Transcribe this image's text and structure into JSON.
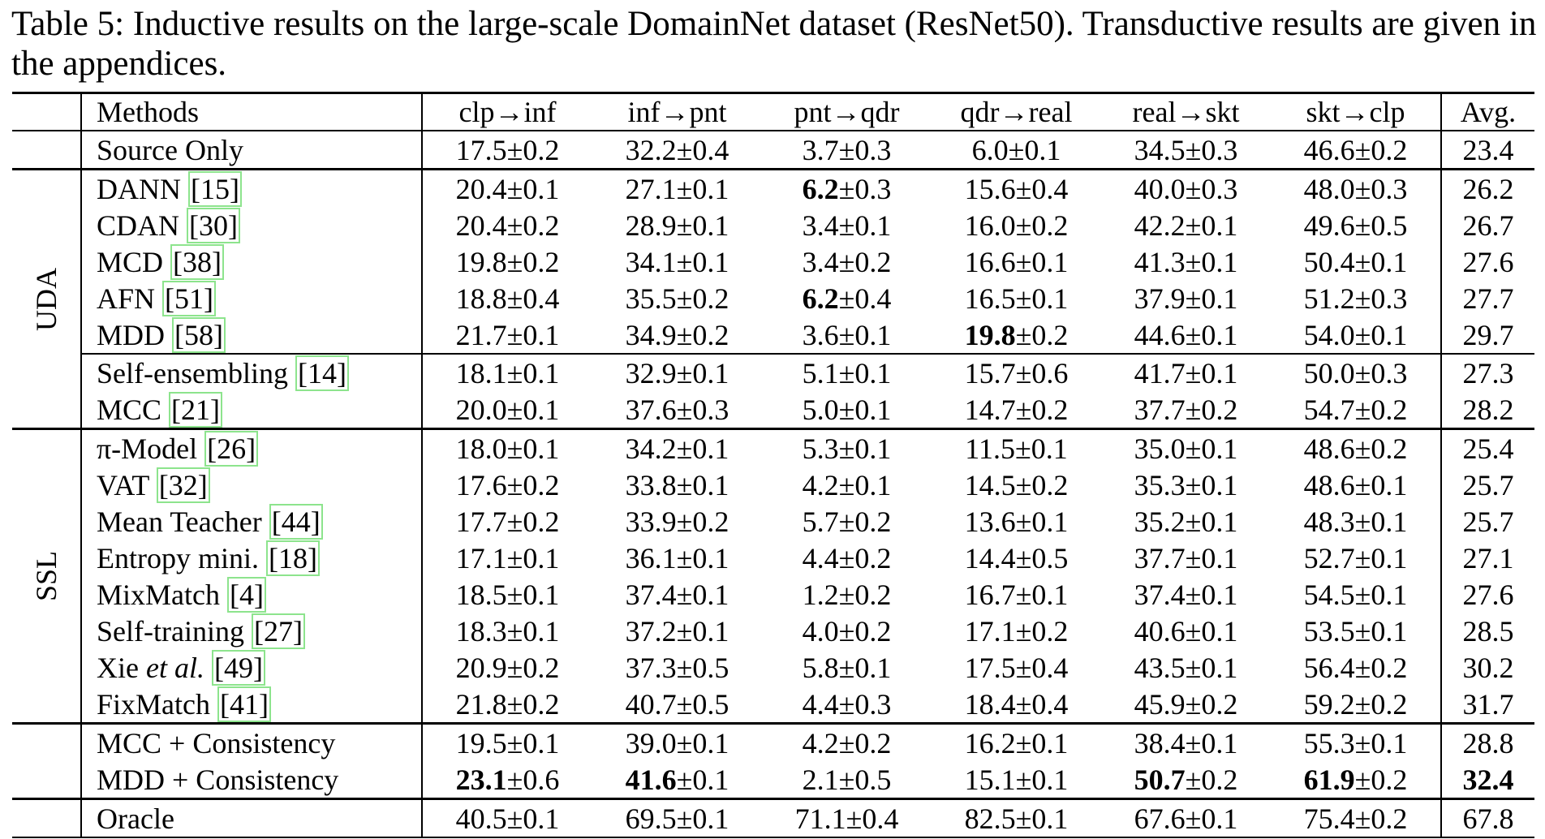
{
  "caption": "Table 5: Inductive results on the large-scale DomainNet dataset (ResNet50). Transductive results are given in the appendices.",
  "colors": {
    "citation_box": "#8de48d",
    "text": "#000000",
    "background": "#ffffff"
  },
  "table": {
    "columns": [
      "Methods",
      "clp→inf",
      "inf→pnt",
      "pnt→qdr",
      "qdr→real",
      "real→skt",
      "skt→clp",
      "Avg."
    ],
    "plus_minus_symbol": "±",
    "group_labels": [
      "UDA",
      "SSL"
    ],
    "rows": [
      {
        "method": "Source Only",
        "cite": null,
        "group": {
          "label": "",
          "span": 1
        },
        "sep": "thin",
        "cells": [
          [
            "17.5",
            "0.2"
          ],
          [
            "32.2",
            "0.4"
          ],
          [
            "3.7",
            "0.3"
          ],
          [
            "6.0",
            "0.1"
          ],
          [
            "34.5",
            "0.3"
          ],
          [
            "46.6",
            "0.2"
          ]
        ],
        "avg": [
          "23.4"
        ]
      },
      {
        "method": "DANN",
        "cite": "15",
        "group": {
          "label": "UDA",
          "span": 7
        },
        "sep": "thick",
        "cells": [
          [
            "20.4",
            "0.1"
          ],
          [
            "27.1",
            "0.1"
          ],
          [
            "6.2",
            "0.3",
            true
          ],
          [
            "15.6",
            "0.4"
          ],
          [
            "40.0",
            "0.3"
          ],
          [
            "48.0",
            "0.3"
          ]
        ],
        "avg": [
          "26.2"
        ]
      },
      {
        "method": "CDAN",
        "cite": "30",
        "cells": [
          [
            "20.4",
            "0.2"
          ],
          [
            "28.9",
            "0.1"
          ],
          [
            "3.4",
            "0.1"
          ],
          [
            "16.0",
            "0.2"
          ],
          [
            "42.2",
            "0.1"
          ],
          [
            "49.6",
            "0.5"
          ]
        ],
        "avg": [
          "26.7"
        ]
      },
      {
        "method": "MCD",
        "cite": "38",
        "cells": [
          [
            "19.8",
            "0.2"
          ],
          [
            "34.1",
            "0.1"
          ],
          [
            "3.4",
            "0.2"
          ],
          [
            "16.6",
            "0.1"
          ],
          [
            "41.3",
            "0.1"
          ],
          [
            "50.4",
            "0.1"
          ]
        ],
        "avg": [
          "27.6"
        ]
      },
      {
        "method": "AFN",
        "cite": "51",
        "cells": [
          [
            "18.8",
            "0.4"
          ],
          [
            "35.5",
            "0.2"
          ],
          [
            "6.2",
            "0.4",
            true
          ],
          [
            "16.5",
            "0.1"
          ],
          [
            "37.9",
            "0.1"
          ],
          [
            "51.2",
            "0.3"
          ]
        ],
        "avg": [
          "27.7"
        ]
      },
      {
        "method": "MDD",
        "cite": "58",
        "cells": [
          [
            "21.7",
            "0.1"
          ],
          [
            "34.9",
            "0.2"
          ],
          [
            "3.6",
            "0.1"
          ],
          [
            "19.8",
            "0.2",
            true
          ],
          [
            "44.6",
            "0.1"
          ],
          [
            "54.0",
            "0.1"
          ]
        ],
        "avg": [
          "29.7"
        ]
      },
      {
        "method": "Self-ensembling",
        "cite": "14",
        "sep": "partial",
        "cells": [
          [
            "18.1",
            "0.1"
          ],
          [
            "32.9",
            "0.1"
          ],
          [
            "5.1",
            "0.1"
          ],
          [
            "15.7",
            "0.6"
          ],
          [
            "41.7",
            "0.1"
          ],
          [
            "50.0",
            "0.3"
          ]
        ],
        "avg": [
          "27.3"
        ]
      },
      {
        "method": "MCC",
        "cite": "21",
        "cells": [
          [
            "20.0",
            "0.1"
          ],
          [
            "37.6",
            "0.3"
          ],
          [
            "5.0",
            "0.1"
          ],
          [
            "14.7",
            "0.2"
          ],
          [
            "37.7",
            "0.2"
          ],
          [
            "54.7",
            "0.2"
          ]
        ],
        "avg": [
          "28.2"
        ]
      },
      {
        "method": "π-Model",
        "cite": "26",
        "group": {
          "label": "SSL",
          "span": 8
        },
        "sep": "thick",
        "cells": [
          [
            "18.0",
            "0.1"
          ],
          [
            "34.2",
            "0.1"
          ],
          [
            "5.3",
            "0.1"
          ],
          [
            "11.5",
            "0.1"
          ],
          [
            "35.0",
            "0.1"
          ],
          [
            "48.6",
            "0.2"
          ]
        ],
        "avg": [
          "25.4"
        ]
      },
      {
        "method": "VAT",
        "cite": "32",
        "cells": [
          [
            "17.6",
            "0.2"
          ],
          [
            "33.8",
            "0.1"
          ],
          [
            "4.2",
            "0.1"
          ],
          [
            "14.5",
            "0.2"
          ],
          [
            "35.3",
            "0.1"
          ],
          [
            "48.6",
            "0.1"
          ]
        ],
        "avg": [
          "25.7"
        ]
      },
      {
        "method": "Mean Teacher",
        "cite": "44",
        "cells": [
          [
            "17.7",
            "0.2"
          ],
          [
            "33.9",
            "0.2"
          ],
          [
            "5.7",
            "0.2"
          ],
          [
            "13.6",
            "0.1"
          ],
          [
            "35.2",
            "0.1"
          ],
          [
            "48.3",
            "0.1"
          ]
        ],
        "avg": [
          "25.7"
        ]
      },
      {
        "method": "Entropy mini.",
        "cite": "18",
        "cells": [
          [
            "17.1",
            "0.1"
          ],
          [
            "36.1",
            "0.1"
          ],
          [
            "4.4",
            "0.2"
          ],
          [
            "14.4",
            "0.5"
          ],
          [
            "37.7",
            "0.1"
          ],
          [
            "52.7",
            "0.1"
          ]
        ],
        "avg": [
          "27.1"
        ]
      },
      {
        "method": "MixMatch",
        "cite": "4",
        "cells": [
          [
            "18.5",
            "0.1"
          ],
          [
            "37.4",
            "0.1"
          ],
          [
            "1.2",
            "0.2"
          ],
          [
            "16.7",
            "0.1"
          ],
          [
            "37.4",
            "0.1"
          ],
          [
            "54.5",
            "0.1"
          ]
        ],
        "avg": [
          "27.6"
        ]
      },
      {
        "method": "Self-training",
        "cite": "27",
        "cells": [
          [
            "18.3",
            "0.1"
          ],
          [
            "37.2",
            "0.1"
          ],
          [
            "4.0",
            "0.2"
          ],
          [
            "17.1",
            "0.2"
          ],
          [
            "40.6",
            "0.1"
          ],
          [
            "53.5",
            "0.1"
          ]
        ],
        "avg": [
          "28.5"
        ]
      },
      {
        "method": "Xie",
        "italic": "et al.",
        "cite": "49",
        "cells": [
          [
            "20.9",
            "0.2"
          ],
          [
            "37.3",
            "0.5"
          ],
          [
            "5.8",
            "0.1"
          ],
          [
            "17.5",
            "0.4"
          ],
          [
            "43.5",
            "0.1"
          ],
          [
            "56.4",
            "0.2"
          ]
        ],
        "avg": [
          "30.2"
        ]
      },
      {
        "method": "FixMatch",
        "cite": "41",
        "cells": [
          [
            "21.8",
            "0.2"
          ],
          [
            "40.7",
            "0.5"
          ],
          [
            "4.4",
            "0.3"
          ],
          [
            "18.4",
            "0.4"
          ],
          [
            "45.9",
            "0.2"
          ],
          [
            "59.2",
            "0.2"
          ]
        ],
        "avg": [
          "31.7"
        ]
      },
      {
        "method": "MCC + Consistency",
        "cite": null,
        "group": {
          "label": "",
          "span": 2
        },
        "sep": "thick",
        "cells": [
          [
            "19.5",
            "0.1"
          ],
          [
            "39.0",
            "0.1"
          ],
          [
            "4.2",
            "0.2"
          ],
          [
            "16.2",
            "0.1"
          ],
          [
            "38.4",
            "0.1"
          ],
          [
            "55.3",
            "0.1"
          ]
        ],
        "avg": [
          "28.8"
        ]
      },
      {
        "method": "MDD + Consistency",
        "cite": null,
        "cells": [
          [
            "23.1",
            "0.6",
            true
          ],
          [
            "41.6",
            "0.1",
            true
          ],
          [
            "2.1",
            "0.5"
          ],
          [
            "15.1",
            "0.1"
          ],
          [
            "50.7",
            "0.2",
            true
          ],
          [
            "61.9",
            "0.2",
            true
          ]
        ],
        "avg": [
          "32.4",
          null,
          true
        ]
      },
      {
        "method": "Oracle",
        "cite": null,
        "group": {
          "label": "",
          "span": 1
        },
        "sep": "thick",
        "cells": [
          [
            "40.5",
            "0.1"
          ],
          [
            "69.5",
            "0.1"
          ],
          [
            "71.1",
            "0.4"
          ],
          [
            "82.5",
            "0.1"
          ],
          [
            "67.6",
            "0.1"
          ],
          [
            "75.4",
            "0.2"
          ]
        ],
        "avg": [
          "67.8"
        ]
      }
    ]
  }
}
